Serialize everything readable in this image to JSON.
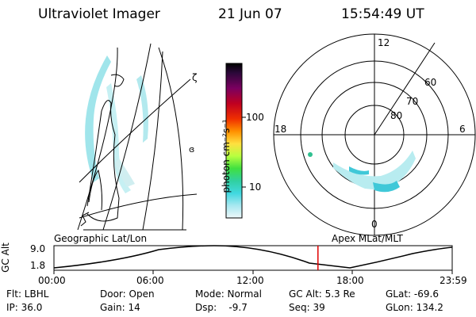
{
  "header": {
    "instrument": "Ultraviolet Imager",
    "date": "21 Jun 07",
    "time": "15:54:49 UT"
  },
  "colorbar": {
    "label": "photon cm⁻²s⁻¹",
    "ticks": [
      "100",
      "10"
    ],
    "colors": [
      "#000000",
      "#1a0a3a",
      "#5a0a5a",
      "#a00030",
      "#e00000",
      "#f06000",
      "#ffb000",
      "#ffff40",
      "#a0ff60",
      "#40e060",
      "#30d0b0",
      "#40d8e0",
      "#a0e8f0",
      "#e8f4f8"
    ]
  },
  "polar": {
    "top_label": "12",
    "left_label": "18",
    "right_label": "6",
    "bottom_label": "0",
    "lat_labels": [
      "60",
      "70",
      "80"
    ]
  },
  "map_labels": {
    "left": "Geographic Lat/Lon",
    "right": "Apex MLat/MLT"
  },
  "altitude_plot": {
    "ylabel": "GC Alt",
    "yticks": [
      "9.0",
      "1.8"
    ],
    "xticks": [
      "00:00",
      "06:00",
      "12:00",
      "18:00",
      "23:59"
    ],
    "current_time_hours": 15.91
  },
  "info": {
    "filter": "Flt: LBHL",
    "ip": "IP: 36.0",
    "door": "Door: Open",
    "gain": "Gain: 14",
    "mode": "Mode: Normal",
    "dsp": "Dsp:    -9.7",
    "gc_alt": "GC Alt: 5.3 Re",
    "seq": "Seq: 39",
    "glat": "GLat: -69.6",
    "glon": "GLon: 134.2"
  },
  "accent_colors": {
    "aurora": "#40d8e0",
    "time_marker": "#e00000"
  }
}
